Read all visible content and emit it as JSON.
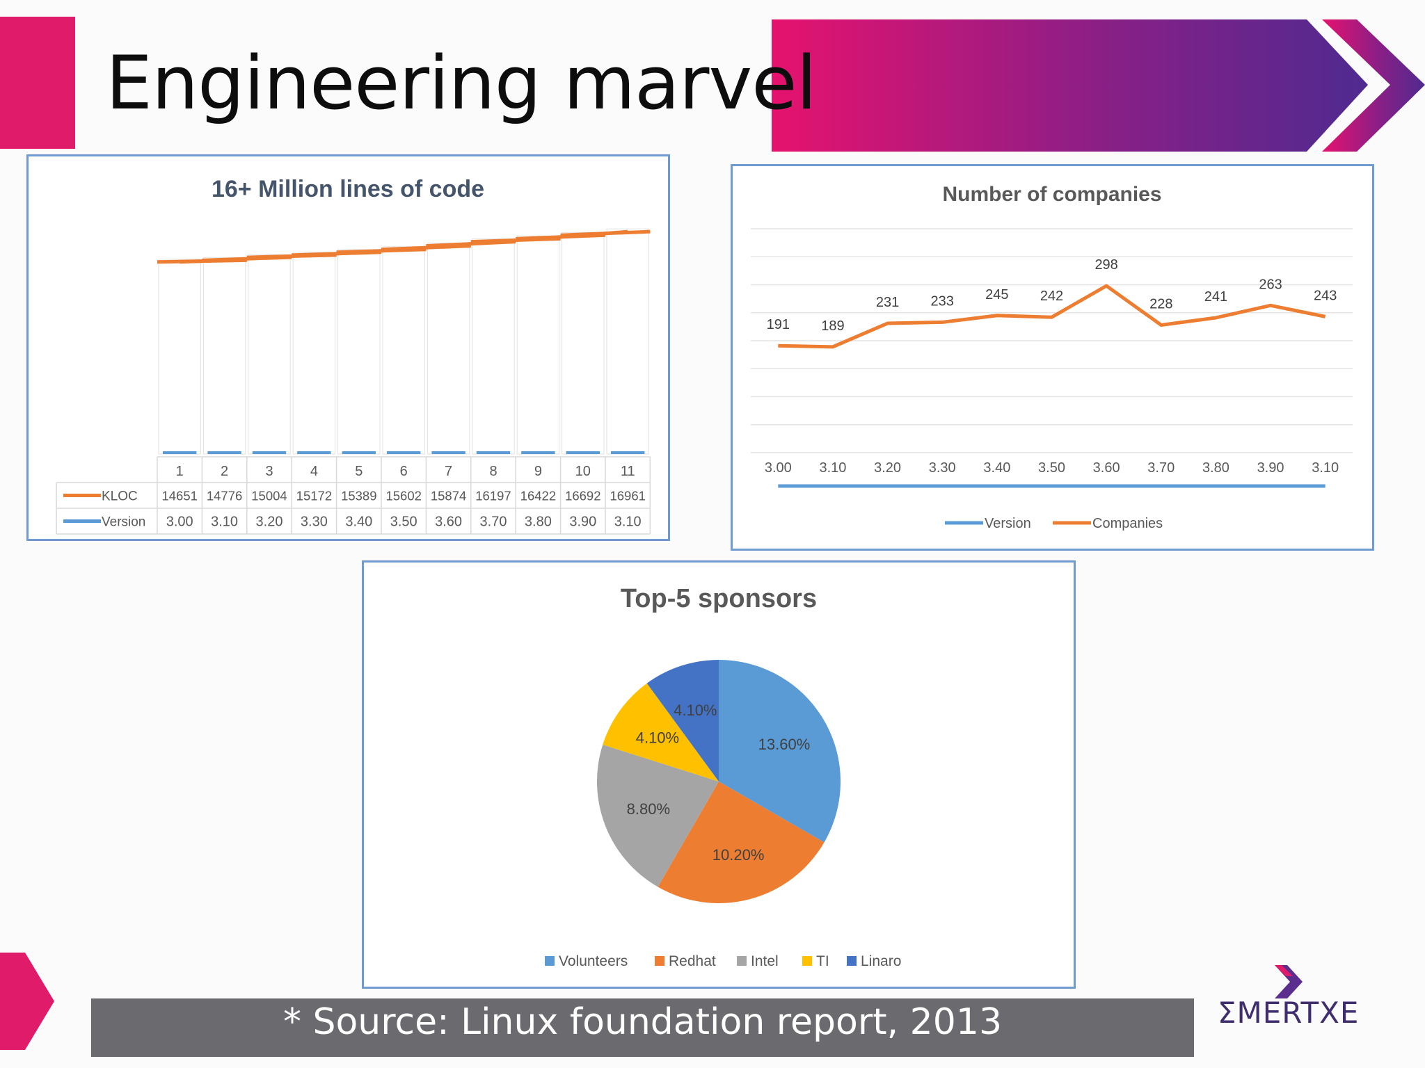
{
  "slide": {
    "title": "Engineering marvel",
    "footer": "* Source: Linux foundation report, 2013",
    "logo": "ΣMERTXE"
  },
  "colors": {
    "pink": "#e01b6a",
    "purple": "#5b2d8e",
    "orange": "#ed7d31",
    "blue": "#5b9bd5",
    "gray": "#a5a5a5",
    "yellow": "#ffc000",
    "darkblue": "#4472c4",
    "footer": "#6a6a6f"
  },
  "chart_data": [
    {
      "type": "line",
      "title": "16+ Million lines of code",
      "categories": [
        "1",
        "2",
        "3",
        "4",
        "5",
        "6",
        "7",
        "8",
        "9",
        "10",
        "11"
      ],
      "series": [
        {
          "name": "KLOC",
          "color": "#ed7d31",
          "values": [
            14651,
            14776,
            15004,
            15172,
            15389,
            15602,
            15874,
            16197,
            16422,
            16692,
            16961
          ]
        },
        {
          "name": "Version",
          "color": "#5b9bd5",
          "values": [
            "3.00",
            "3.10",
            "3.20",
            "3.30",
            "3.40",
            "3.50",
            "3.60",
            "3.70",
            "3.80",
            "3.90",
            "3.10"
          ]
        }
      ],
      "legend": "data-table"
    },
    {
      "type": "line",
      "title": "Number of companies",
      "categories": [
        "3.00",
        "3.10",
        "3.20",
        "3.30",
        "3.40",
        "3.50",
        "3.60",
        "3.70",
        "3.80",
        "3.90",
        "3.10"
      ],
      "series": [
        {
          "name": "Version",
          "color": "#5b9bd5"
        },
        {
          "name": "Companies",
          "color": "#ed7d31",
          "values": [
            191,
            189,
            231,
            233,
            245,
            242,
            298,
            228,
            241,
            263,
            243
          ]
        }
      ],
      "legend": "bottom",
      "grid": true
    },
    {
      "type": "pie",
      "title": "Top-5 sponsors",
      "labels": [
        "Volunteers",
        "Redhat",
        "Intel",
        "TI",
        "Linaro"
      ],
      "values": [
        13.6,
        10.2,
        8.8,
        4.1,
        4.1
      ],
      "value_labels": [
        "13.60%",
        "10.20%",
        "8.80%",
        "4.10%",
        "4.10%"
      ],
      "colors": [
        "#5b9bd5",
        "#ed7d31",
        "#a5a5a5",
        "#ffc000",
        "#4472c4"
      ],
      "legend": "bottom"
    }
  ]
}
